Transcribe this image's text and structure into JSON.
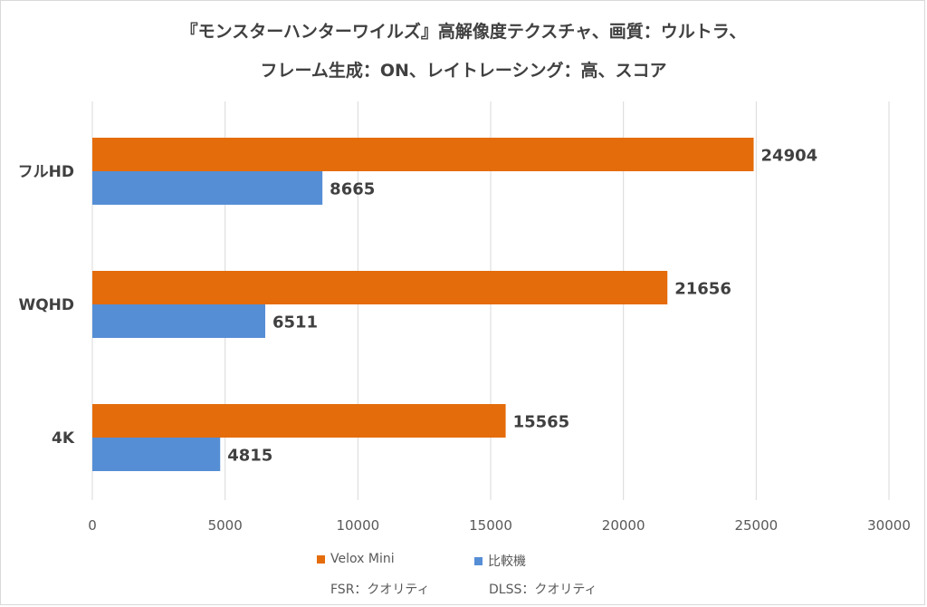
{
  "chart_data": {
    "type": "bar",
    "orientation": "horizontal",
    "title": [
      "『モンスターハンターワイルズ』高解像度テクスチャ、画質：ウルトラ、",
      "フレーム生成：ON、レイトレーシング：高、スコア"
    ],
    "categories": [
      "フルHD",
      "WQHD",
      "4K"
    ],
    "series": [
      {
        "name": "Velox Mini",
        "color": "#E46C0A",
        "values": [
          24904,
          21656,
          15565
        ]
      },
      {
        "name": "比較機",
        "color": "#558ED5",
        "values": [
          8665,
          6511,
          4815
        ]
      }
    ],
    "xlim": [
      0,
      30000
    ],
    "xticks": [
      0,
      5000,
      10000,
      15000,
      20000,
      25000,
      30000
    ],
    "grid": true,
    "legend_position": "bottom",
    "notes": [
      "FSR：クオリティ",
      "DLSS：クオリティ"
    ]
  }
}
